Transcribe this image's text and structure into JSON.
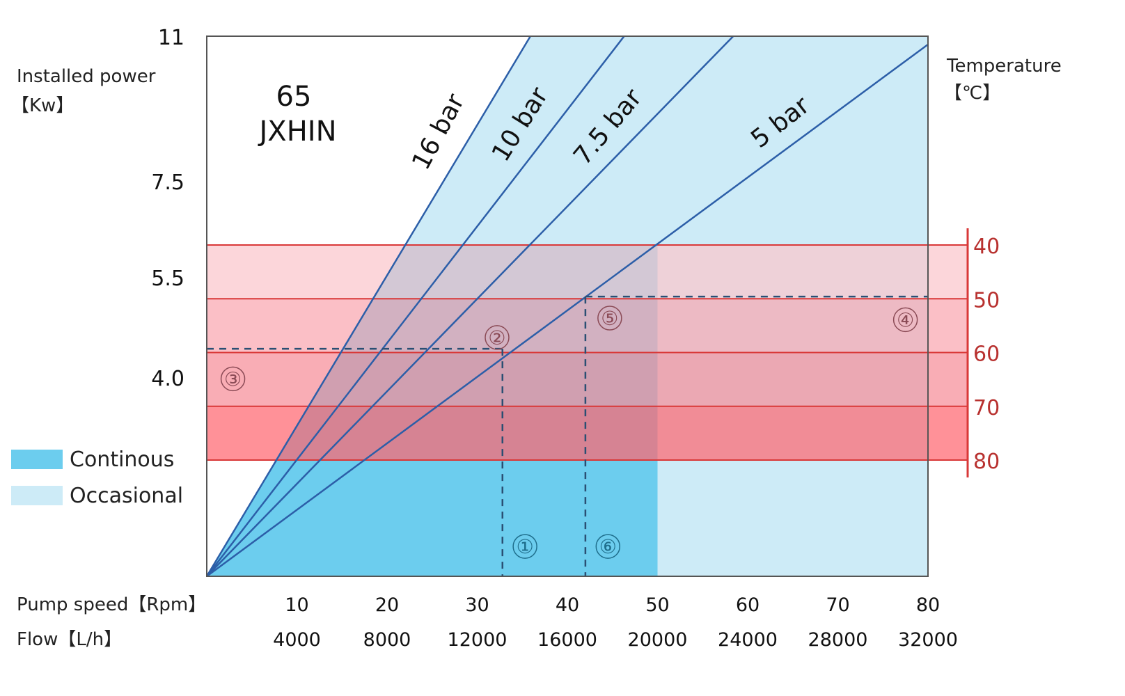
{
  "chart_data": {
    "type": "line",
    "title": [
      "65",
      "JXHIN"
    ],
    "ylabel": [
      "Installed power",
      "【Kw】"
    ],
    "y2label": [
      "Temperature",
      "【℃】"
    ],
    "xlabels": [
      "Pump speed【Rpm】",
      "Flow【L/h】"
    ],
    "xlim_rpm": [
      0,
      80
    ],
    "xlim_flow": [
      0,
      32000
    ],
    "x_ticks_rpm": [
      "10",
      "20",
      "30",
      "40",
      "50",
      "60",
      "70",
      "80"
    ],
    "x_ticks_flow": [
      "4000",
      "8000",
      "12000",
      "16000",
      "20000",
      "24000",
      "28000",
      "32000"
    ],
    "y_ticks": [
      "11",
      "7.5",
      "5.5",
      "4.0"
    ],
    "y_tick_values": [
      11,
      7.5,
      5.5,
      4.0
    ],
    "y2_ticks": [
      "40",
      "50",
      "60",
      "70",
      "80"
    ],
    "y2_tick_values": [
      40,
      50,
      60,
      70,
      80
    ],
    "series": [
      {
        "name": "16 bar",
        "points": [
          [
            0,
            0
          ],
          [
            35.9,
            11
          ]
        ]
      },
      {
        "name": "10 bar",
        "points": [
          [
            0,
            0
          ],
          [
            46.3,
            11
          ]
        ]
      },
      {
        "name": "7.5 bar",
        "points": [
          [
            0,
            0
          ],
          [
            58.4,
            11
          ]
        ]
      },
      {
        "name": "5 bar",
        "points": [
          [
            0,
            0
          ],
          [
            80,
            10.8
          ]
        ]
      }
    ],
    "regions": {
      "continuous": {
        "label": "Continous",
        "color": "#6ccdee",
        "rpm_max": 50,
        "temp_limit": 40
      },
      "occasional": {
        "label": "Occasional",
        "color": "#cdebf7"
      }
    },
    "temperature_bands": [
      {
        "from": 40,
        "to": 50,
        "color": "#fbc6cc"
      },
      {
        "from": 50,
        "to": 60,
        "color": "#f9a6b0"
      },
      {
        "from": 60,
        "to": 70,
        "color": "#f78e98"
      },
      {
        "from": 70,
        "to": 80,
        "color": "#ff6670"
      }
    ],
    "guides": [
      {
        "type": "horizontal",
        "temp": 59.3,
        "rpm_from": 0,
        "rpm_to": 32.8
      },
      {
        "type": "vertical",
        "rpm": 32.8,
        "temp_from": 59.3
      },
      {
        "type": "horizontal",
        "temp": 49.6,
        "rpm_from": 42.0,
        "rpm_to": 80
      },
      {
        "type": "vertical",
        "rpm": 42.0,
        "temp_from": 49.6
      }
    ],
    "markers": [
      {
        "text": "①",
        "rpm": 35.3,
        "kw": 0.6
      },
      {
        "text": "②",
        "rpm": 32.2,
        "temp": 57.2
      },
      {
        "text": "③",
        "rpm": 2.9,
        "temp": 64.9
      },
      {
        "text": "④",
        "rpm": 77.5,
        "temp": 53.9
      },
      {
        "text": "⑤",
        "rpm": 44.7,
        "temp": 53.6
      },
      {
        "text": "⑥",
        "rpm": 44.5,
        "kw": 0.6
      }
    ],
    "legend": "left",
    "colors": {
      "line": "#2c5ea8",
      "red": "#d93838",
      "red_text": "#b8312f",
      "guide": "#2a4f73"
    }
  }
}
